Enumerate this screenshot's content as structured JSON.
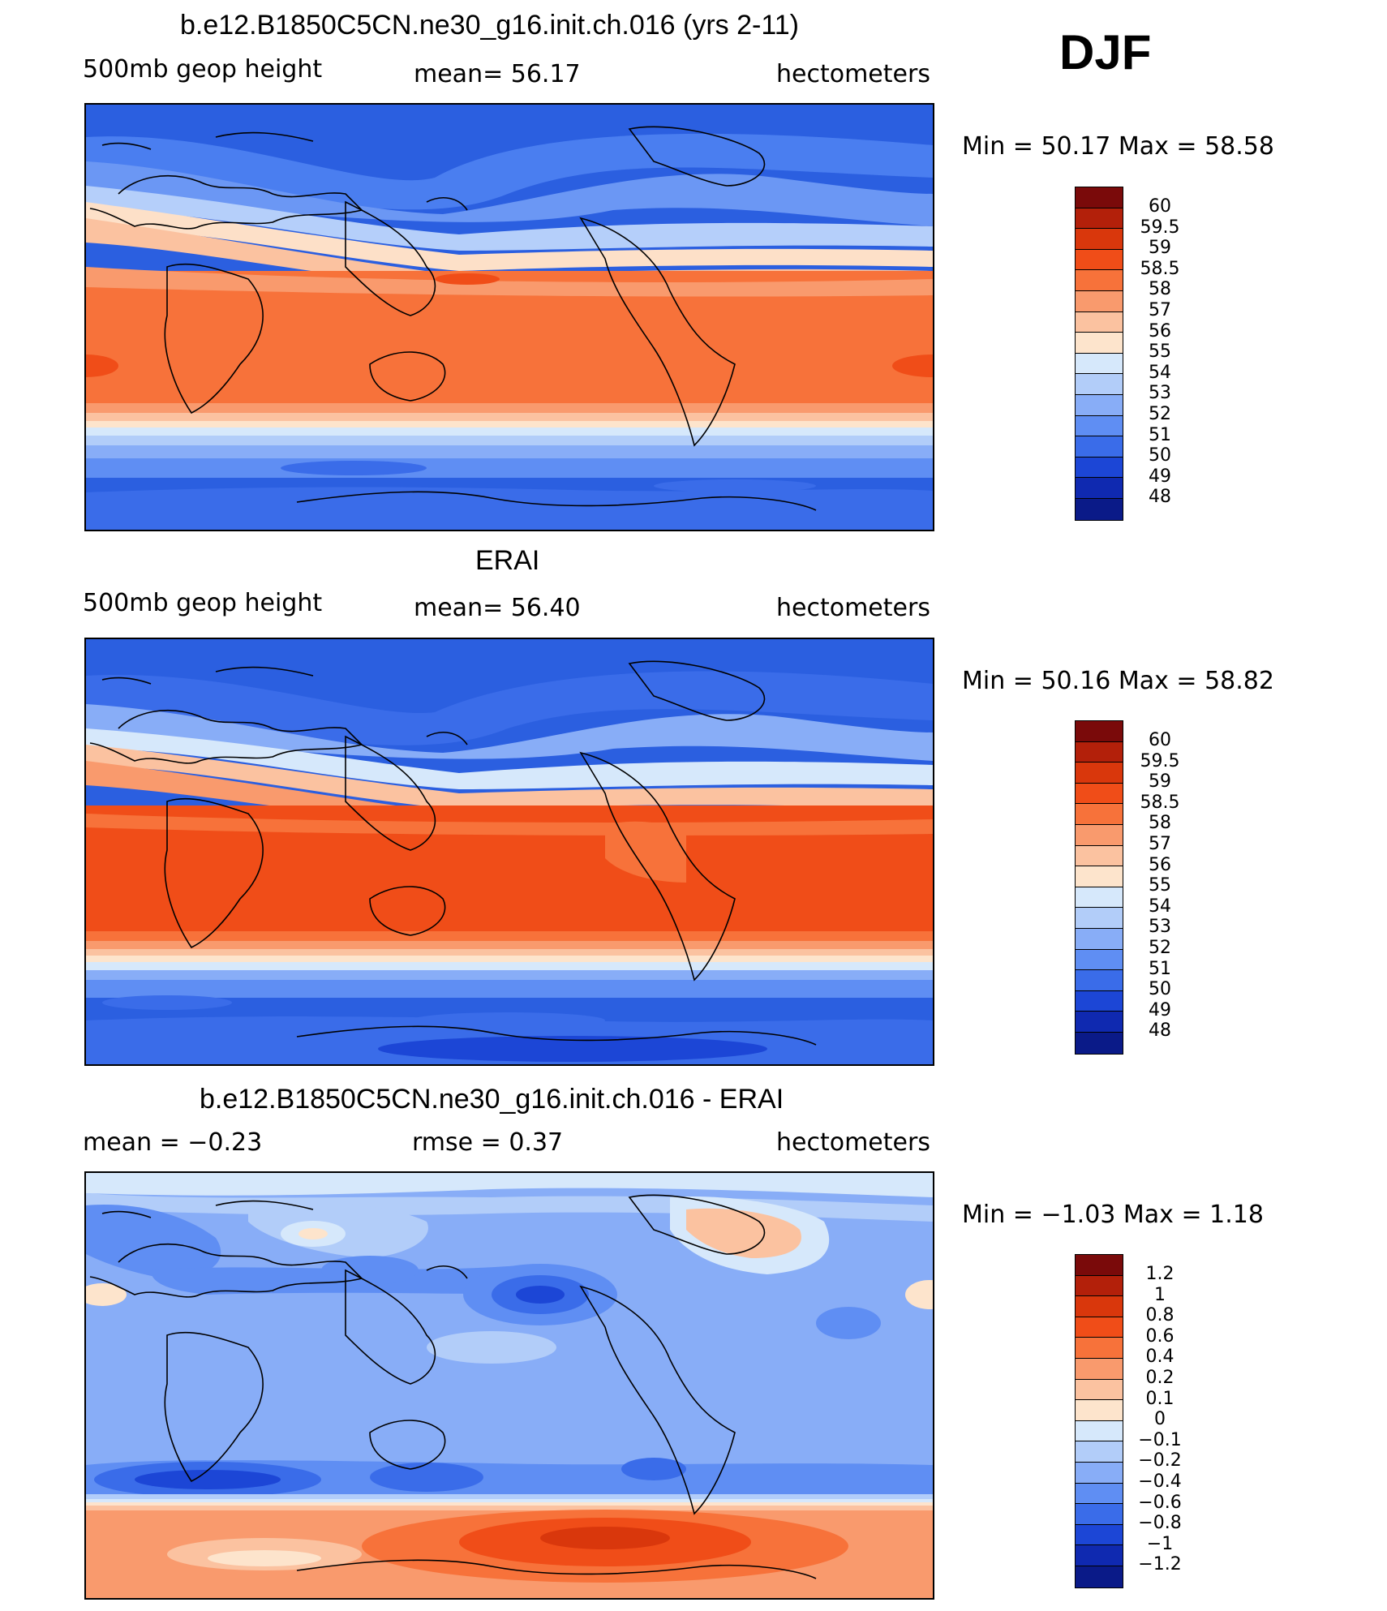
{
  "season": "DJF",
  "panels": [
    {
      "title": "b.e12.B1850C5CN.ne30_g16.init.ch.016 (yrs 2-11)",
      "left_label": "500mb  geop  height",
      "center_label": "mean=   56.17",
      "right_label": "hectometers",
      "minmax": "Min  =    50.17  Max  =    58.58",
      "colorbar_levels": [
        "60",
        "59.5",
        "59",
        "58.5",
        "58",
        "57",
        "56",
        "55",
        "54",
        "53",
        "52",
        "51",
        "50",
        "49",
        "48"
      ]
    },
    {
      "title": "ERAI",
      "left_label": "500mb  geop  height",
      "center_label": "mean=   56.40",
      "right_label": "hectometers",
      "minmax": "Min  =    50.16  Max  =    58.82",
      "colorbar_levels": [
        "60",
        "59.5",
        "59",
        "58.5",
        "58",
        "57",
        "56",
        "55",
        "54",
        "53",
        "52",
        "51",
        "50",
        "49",
        "48"
      ]
    },
    {
      "title": "b.e12.B1850C5CN.ne30_g16.init.ch.016 - ERAI",
      "left_label": "mean  =    −0.23",
      "center_label": "rmse  =     0.37",
      "right_label": "hectometers",
      "minmax": "Min  =   −1.03  Max  =     1.18",
      "colorbar_levels": [
        "1.2",
        "1",
        "0.8",
        "0.6",
        "0.4",
        "0.2",
        "0.1",
        "0",
        "−0.1",
        "−0.2",
        "−0.4",
        "−0.6",
        "−0.8",
        "−1",
        "−1.2"
      ]
    }
  ],
  "colorbar_colors": [
    "#7a0a0a",
    "#b3200a",
    "#d9370c",
    "#f04d18",
    "#f7723a",
    "#f99a6d",
    "#fbc2a0",
    "#fde4cc",
    "#d6e8fb",
    "#b2cdf9",
    "#88adf7",
    "#5f8ef3",
    "#3a6ce9",
    "#1c46d6",
    "#0f29b0",
    "#0a1a88"
  ]
}
